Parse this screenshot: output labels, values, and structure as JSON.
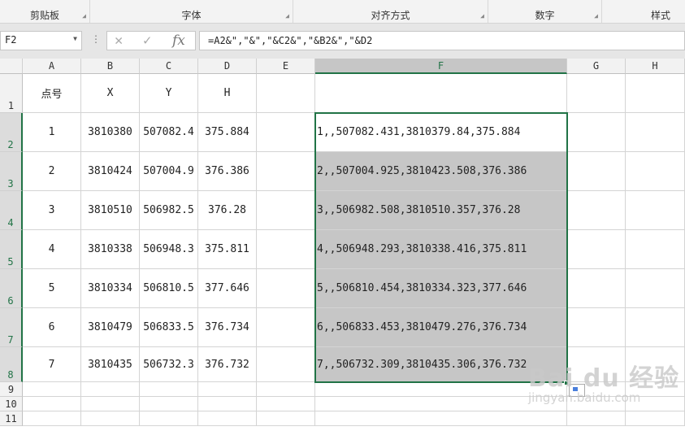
{
  "ribbon": {
    "groups": [
      "剪贴板",
      "字体",
      "对齐方式",
      "数字",
      "样式"
    ]
  },
  "formula_bar": {
    "name_box": "F2",
    "cancel_icon": "✕",
    "enter_icon": "✓",
    "fx_label": "fx",
    "formula": "=A2&\",\"&\",\"&C2&\",\"&B2&\",\"&D2"
  },
  "columns": [
    "A",
    "B",
    "C",
    "D",
    "E",
    "F",
    "G",
    "H"
  ],
  "selected_column": "F",
  "rows": [
    "1",
    "2",
    "3",
    "4",
    "5",
    "6",
    "7",
    "8",
    "9",
    "10",
    "11"
  ],
  "headers": {
    "A": "点号",
    "B": "X",
    "C": "Y",
    "D": "H"
  },
  "data": [
    {
      "A": "1",
      "B": "3810380",
      "C": "507082.4",
      "D": "375.884",
      "F": "1,,507082.431,3810379.84,375.884"
    },
    {
      "A": "2",
      "B": "3810424",
      "C": "507004.9",
      "D": "376.386",
      "F": "2,,507004.925,3810423.508,376.386"
    },
    {
      "A": "3",
      "B": "3810510",
      "C": "506982.5",
      "D": "376.28",
      "F": "3,,506982.508,3810510.357,376.28"
    },
    {
      "A": "4",
      "B": "3810338",
      "C": "506948.3",
      "D": "375.811",
      "F": "4,,506948.293,3810338.416,375.811"
    },
    {
      "A": "5",
      "B": "3810334",
      "C": "506810.5",
      "D": "377.646",
      "F": "5,,506810.454,3810334.323,377.646"
    },
    {
      "A": "6",
      "B": "3810479",
      "C": "506833.5",
      "D": "376.734",
      "F": "6,,506833.453,3810479.276,376.734"
    },
    {
      "A": "7",
      "B": "3810435",
      "C": "506732.3",
      "D": "376.732",
      "F": "7,,506732.309,3810435.306,376.732"
    }
  ],
  "watermark": {
    "brand": "Bai du 经验",
    "url": "jingyan.baidu.com"
  },
  "colors": {
    "accent": "#217346",
    "selection": "#c6c6c6"
  }
}
